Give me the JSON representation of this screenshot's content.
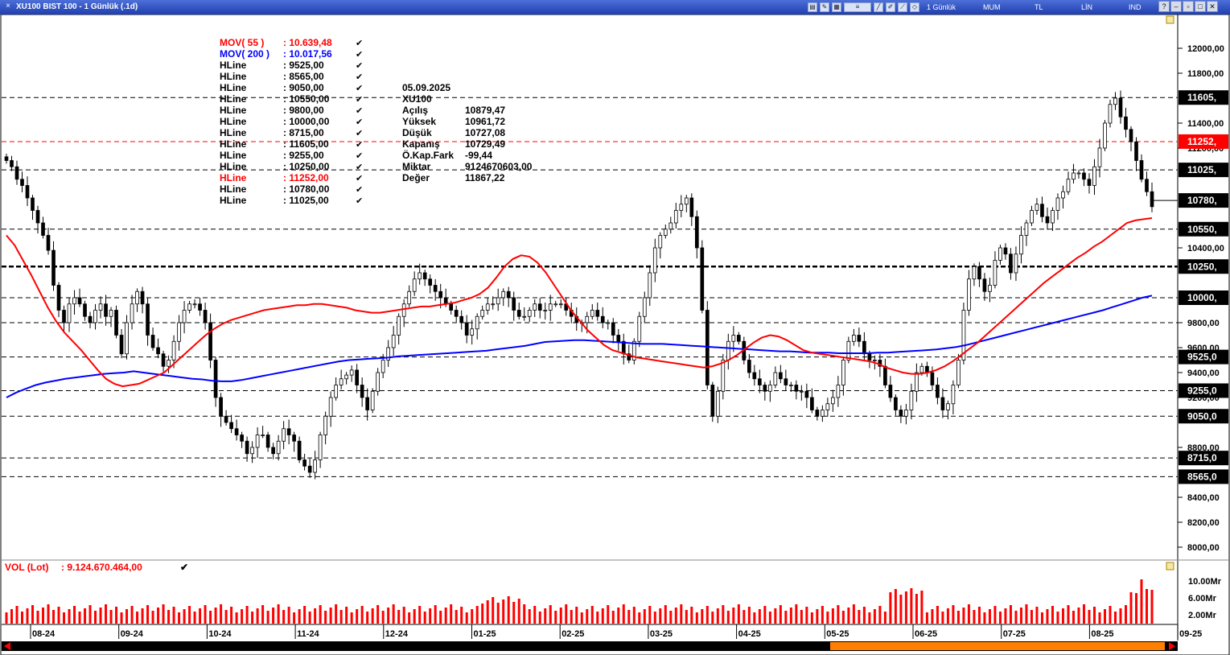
{
  "window": {
    "title": "XU100 BIST 100 - 1 Günlük (.1d)",
    "toolbar_labels": [
      "1 Günlük",
      "MUM",
      "TL",
      "LİN",
      "IND"
    ]
  },
  "indicators": [
    {
      "name": "MOV( 55 )",
      "value": ": 10.639,48",
      "color": "#ff0000"
    },
    {
      "name": "MOV( 200 )",
      "value": ": 10.017,56",
      "color": "#0000ff"
    }
  ],
  "hlines": [
    {
      "name": "HLine",
      "value": ": 9525,00",
      "price": 9525,
      "style": "dash"
    },
    {
      "name": "HLine",
      "value": ": 8565,00",
      "price": 8565,
      "style": "dash"
    },
    {
      "name": "HLine",
      "value": ": 9050,00",
      "price": 9050,
      "style": "dash"
    },
    {
      "name": "HLine",
      "value": ": 10550,00",
      "price": 10550,
      "style": "dash"
    },
    {
      "name": "HLine",
      "value": ": 9800,00",
      "price": 9800,
      "style": "dash"
    },
    {
      "name": "HLine",
      "value": ": 10000,00",
      "price": 10000,
      "style": "dash"
    },
    {
      "name": "HLine",
      "value": ": 8715,00",
      "price": 8715,
      "style": "dash"
    },
    {
      "name": "HLine",
      "value": ": 11605,00",
      "price": 11605,
      "style": "dash"
    },
    {
      "name": "HLine",
      "value": ": 9255,00",
      "price": 9255,
      "style": "dash"
    },
    {
      "name": "HLine",
      "value": ": 10250,00",
      "price": 10250,
      "style": "bold"
    },
    {
      "name": "HLine",
      "value": ": 11252,00",
      "price": 11252,
      "style": "red",
      "highlight": true
    },
    {
      "name": "HLine",
      "value": ": 10780,00",
      "price": 10780,
      "style": "solid"
    },
    {
      "name": "HLine",
      "value": ": 11025,00",
      "price": 11025,
      "style": "dash"
    }
  ],
  "axis_badges": [
    {
      "label": "11605,",
      "price": 11605,
      "bg": "#000000"
    },
    {
      "label": "11252,",
      "price": 11252,
      "bg": "#ff0000"
    },
    {
      "label": "11025,",
      "price": 11025,
      "bg": "#000000"
    },
    {
      "label": "10780,",
      "price": 10780,
      "bg": "#000000"
    },
    {
      "label": "10550,",
      "price": 10550,
      "bg": "#000000"
    },
    {
      "label": "10250,",
      "price": 10250,
      "bg": "#000000"
    },
    {
      "label": "10000,",
      "price": 10000,
      "bg": "#000000"
    },
    {
      "label": "9525,0",
      "price": 9525,
      "bg": "#000000"
    },
    {
      "label": "9255,0",
      "price": 9255,
      "bg": "#000000"
    },
    {
      "label": "9050,0",
      "price": 9050,
      "bg": "#000000"
    },
    {
      "label": "8715,0",
      "price": 8715,
      "bg": "#000000"
    },
    {
      "label": "8565,0",
      "price": 8565,
      "bg": "#000000"
    }
  ],
  "info_box": {
    "date": "05.09.2025",
    "symbol": "XU100",
    "rows": [
      {
        "label": "Açılış",
        "value": "10879,47"
      },
      {
        "label": "Yüksek",
        "value": "10961,72"
      },
      {
        "label": "Düşük",
        "value": "10727,08"
      },
      {
        "label": "Kapanış",
        "value": "10729,49"
      },
      {
        "label": "Ö.Kap.Fark",
        "value": "-99,44"
      },
      {
        "label": "Miktar",
        "value": "9124670603,00"
      },
      {
        "label": "Değer",
        "value": "11867,22"
      }
    ]
  },
  "volume": {
    "label": "VOL (Lot)",
    "value": ": 9.124.670.464,00",
    "axis_labels": [
      "10.00Mr",
      "6.00Mr",
      "2.00Mr"
    ]
  },
  "chart_data": {
    "type": "candlestick",
    "price_axis_ticks": [
      "12000,00",
      "11800,00",
      "11400,00",
      "11200,00",
      "10400,00",
      "9800,00",
      "9600,00",
      "9400,00",
      "9200,00",
      "8800,00",
      "8400,00",
      "8200,00",
      "8000,00"
    ],
    "tick_values": [
      12000,
      11800,
      11400,
      11200,
      10400,
      9800,
      9600,
      9400,
      9200,
      8800,
      8400,
      8200,
      8000
    ],
    "x_axis_labels": [
      "08-24",
      "09-24",
      "10-24",
      "11-24",
      "12-24",
      "01-25",
      "02-25",
      "03-25",
      "04-25",
      "05-25",
      "06-25",
      "07-25",
      "08-25",
      "09-25"
    ],
    "ylim": [
      8000,
      12000
    ],
    "closes": [
      11100,
      11050,
      10950,
      10900,
      10800,
      10700,
      10600,
      10500,
      10380,
      10100,
      9900,
      9800,
      9950,
      10000,
      9950,
      9850,
      9800,
      9900,
      9950,
      9850,
      9900,
      9700,
      9550,
      9800,
      9950,
      10050,
      9950,
      9700,
      9600,
      9550,
      9450,
      9500,
      9650,
      9800,
      9900,
      9950,
      9950,
      9900,
      9800,
      9500,
      9200,
      9050,
      9000,
      8950,
      8900,
      8850,
      8750,
      8800,
      8900,
      8900,
      8800,
      8750,
      8850,
      8950,
      8900,
      8850,
      8700,
      8650,
      8600,
      8700,
      8900,
      9050,
      9200,
      9300,
      9350,
      9380,
      9420,
      9300,
      9200,
      9100,
      9250,
      9400,
      9500,
      9600,
      9700,
      9850,
      9950,
      10050,
      10150,
      10200,
      10150,
      10100,
      10050,
      10000,
      9950,
      9900,
      9850,
      9800,
      9700,
      9750,
      9850,
      9900,
      9950,
      9950,
      10000,
      10050,
      10000,
      9900,
      9850,
      9850,
      9900,
      9950,
      9900,
      9900,
      9950,
      9950,
      9950,
      9900,
      9850,
      9800,
      9800,
      9850,
      9900,
      9850,
      9800,
      9800,
      9700,
      9650,
      9550,
      9500,
      9650,
      9850,
      10000,
      10200,
      10400,
      10500,
      10550,
      10600,
      10700,
      10750,
      10800,
      10650,
      10400,
      9900,
      9300,
      9050,
      9250,
      9500,
      9650,
      9700,
      9650,
      9500,
      9400,
      9350,
      9300,
      9250,
      9300,
      9400,
      9350,
      9300,
      9300,
      9250,
      9250,
      9200,
      9100,
      9050,
      9100,
      9150,
      9200,
      9300,
      9500,
      9650,
      9700,
      9650,
      9550,
      9500,
      9500,
      9450,
      9300,
      9200,
      9100,
      9050,
      9100,
      9250,
      9400,
      9450,
      9400,
      9300,
      9200,
      9100,
      9150,
      9300,
      9500,
      9900,
      10150,
      10250,
      10150,
      10050,
      10100,
      10300,
      10400,
      10350,
      10200,
      10350,
      10500,
      10600,
      10700,
      10750,
      10650,
      10600,
      10700,
      10800,
      10850,
      10950,
      11000,
      11000,
      10950,
      10900,
      11050,
      11200,
      11400,
      11550,
      11600,
      11450,
      11350,
      11250,
      11100,
      10950,
      10850,
      10730
    ],
    "ma55": [
      10500,
      10420,
      10300,
      10180,
      10050,
      9920,
      9810,
      9720,
      9650,
      9580,
      9500,
      9420,
      9350,
      9310,
      9290,
      9300,
      9310,
      9340,
      9370,
      9400,
      9460,
      9520,
      9580,
      9640,
      9700,
      9750,
      9790,
      9820,
      9840,
      9860,
      9880,
      9900,
      9910,
      9920,
      9930,
      9940,
      9940,
      9950,
      9950,
      9940,
      9930,
      9920,
      9900,
      9890,
      9880,
      9880,
      9890,
      9900,
      9910,
      9920,
      9930,
      9930,
      9940,
      9950,
      9960,
      9980,
      10000,
      10030,
      10080,
      10160,
      10250,
      10310,
      10340,
      10330,
      10280,
      10200,
      10100,
      10000,
      9900,
      9820,
      9740,
      9680,
      9620,
      9580,
      9560,
      9540,
      9520,
      9510,
      9500,
      9490,
      9480,
      9470,
      9460,
      9450,
      9440,
      9450,
      9470,
      9500,
      9540,
      9590,
      9640,
      9680,
      9700,
      9690,
      9660,
      9620,
      9580,
      9560,
      9550,
      9540,
      9530,
      9520,
      9510,
      9500,
      9490,
      9470,
      9440,
      9420,
      9400,
      9390,
      9390,
      9400,
      9420,
      9450,
      9490,
      9540,
      9590,
      9640,
      9700,
      9760,
      9820,
      9880,
      9940,
      10000,
      10060,
      10120,
      10170,
      10220,
      10270,
      10320,
      10360,
      10410,
      10450,
      10500,
      10550,
      10600,
      10620,
      10630,
      10639
    ],
    "ma200": [
      9200,
      9240,
      9270,
      9300,
      9320,
      9335,
      9350,
      9360,
      9370,
      9380,
      9390,
      9395,
      9400,
      9410,
      9400,
      9390,
      9380,
      9370,
      9360,
      9350,
      9345,
      9335,
      9330,
      9330,
      9340,
      9355,
      9370,
      9385,
      9400,
      9415,
      9430,
      9445,
      9460,
      9475,
      9490,
      9500,
      9505,
      9510,
      9515,
      9520,
      9530,
      9535,
      9540,
      9545,
      9550,
      9555,
      9560,
      9565,
      9570,
      9575,
      9585,
      9595,
      9605,
      9615,
      9630,
      9645,
      9650,
      9655,
      9660,
      9660,
      9655,
      9650,
      9645,
      9640,
      9635,
      9630,
      9630,
      9630,
      9625,
      9620,
      9615,
      9610,
      9605,
      9600,
      9595,
      9590,
      9585,
      9580,
      9575,
      9570,
      9570,
      9565,
      9560,
      9560,
      9560,
      9555,
      9555,
      9555,
      9555,
      9560,
      9560,
      9565,
      9570,
      9575,
      9580,
      9585,
      9595,
      9605,
      9620,
      9640,
      9660,
      9680,
      9700,
      9720,
      9740,
      9760,
      9780,
      9800,
      9820,
      9840,
      9860,
      9880,
      9900,
      9925,
      9950,
      9975,
      10000,
      10017
    ]
  }
}
